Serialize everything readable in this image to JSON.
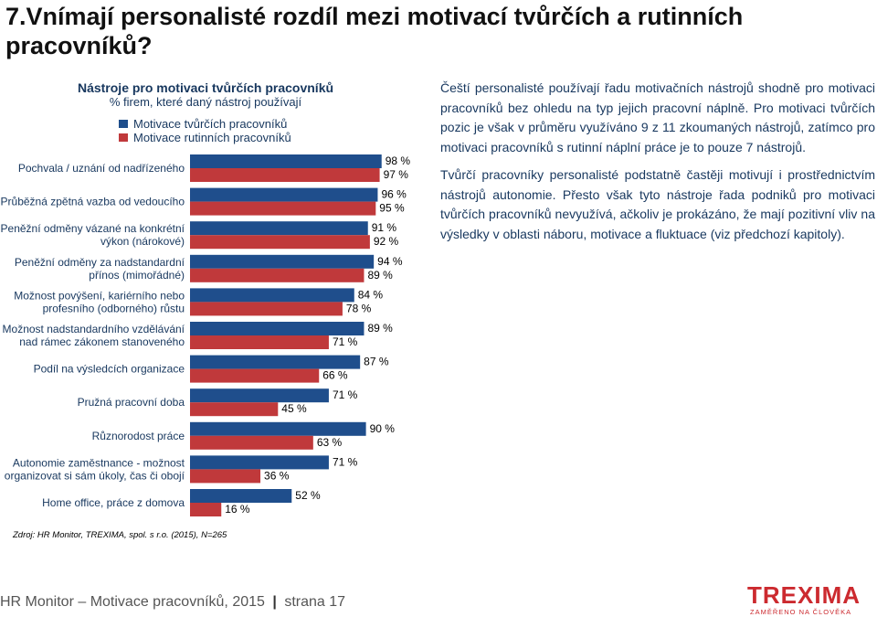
{
  "slide": {
    "title": "7.Vnímají personalisté rozdíl mezi motivací tvůrčích a rutinních pracovníků?"
  },
  "chart_data": {
    "type": "bar",
    "orientation": "horizontal",
    "title": "Nástroje pro motivaci tvůrčích pracovníků",
    "subtitle": "% firem, které daný nástroj používají",
    "categories": [
      [
        "Pochvala / uznání od nadřízeného"
      ],
      [
        "Průběžná zpětná vazba od vedoucího"
      ],
      [
        "Peněžní odměny vázané na konkrétní",
        "výkon (nárokové)"
      ],
      [
        "Peněžní odměny za nadstandardní",
        "přínos (mimořádné)"
      ],
      [
        "Možnost povýšení, kariérního nebo",
        "profesního (odborného) růstu"
      ],
      [
        "Možnost nadstandardního vzdělávání",
        "nad rámec zákonem stanoveného"
      ],
      [
        "Podíl na výsledcích organizace"
      ],
      [
        "Pružná pracovní doba"
      ],
      [
        "Různorodost práce"
      ],
      [
        "Autonomie zaměstnance - možnost",
        "organizovat si sám úkoly, čas či obojí"
      ],
      [
        "Home office, práce z domova"
      ]
    ],
    "series": [
      {
        "name": "Motivace tvůrčích pracovníků",
        "color": "#1f4e8c",
        "values": [
          98,
          96,
          91,
          94,
          84,
          89,
          87,
          71,
          90,
          71,
          52
        ]
      },
      {
        "name": "Motivace rutinních pracovníků",
        "color": "#c0393b",
        "values": [
          97,
          95,
          92,
          89,
          78,
          71,
          66,
          45,
          63,
          36,
          16
        ]
      }
    ],
    "value_labels": [
      [
        "98 %",
        "97 %"
      ],
      [
        "96 %",
        "95 %"
      ],
      [
        "91 %",
        "92 %"
      ],
      [
        "94 %",
        "89 %"
      ],
      [
        "84 %",
        "78 %"
      ],
      [
        "89 %",
        "71 %"
      ],
      [
        "87 %",
        "66 %"
      ],
      [
        "71 %",
        "45 %"
      ],
      [
        "90 %",
        "63 %"
      ],
      [
        "71 %",
        "36 %"
      ],
      [
        "52 %",
        "16 %"
      ]
    ],
    "xlim": [
      0,
      100
    ],
    "legend_position": "top",
    "grid": false
  },
  "source": "Zdroj: HR  Monitor,  TREXIMA, spol. s r.o.  (2015), N=265",
  "text": {
    "p1": "Čeští personalisté používají řadu motivačních nástrojů shodně pro motivaci pracovníků bez ohledu na typ jejich pracovní náplně. Pro motivaci tvůrčích pozic je však v průměru využíváno 9 z 11 zkoumaných nástrojů, zatímco pro motivaci pracovníků s rutinní náplní práce je to pouze 7 nástrojů.",
    "p2": "Tvůrčí pracovníky personalisté podstatně častěji motivují i prostřednictvím nástrojů autonomie. Přesto však tyto nástroje řada podniků pro motivaci tvůrčích pracovníků nevyužívá, ačkoliv je prokázáno, že mají pozitivní vliv na výsledky v oblasti náboru, motivace a fluktuace (viz předchozí kapitoly)."
  },
  "footer": {
    "left": "HR Monitor – Motivace pracovníků, 2015",
    "sep": "|",
    "right": "strana 17"
  },
  "logo": {
    "name": "TREXIMA",
    "tagline": "ZAMĚŘENO NA ČLOVĚKA"
  }
}
